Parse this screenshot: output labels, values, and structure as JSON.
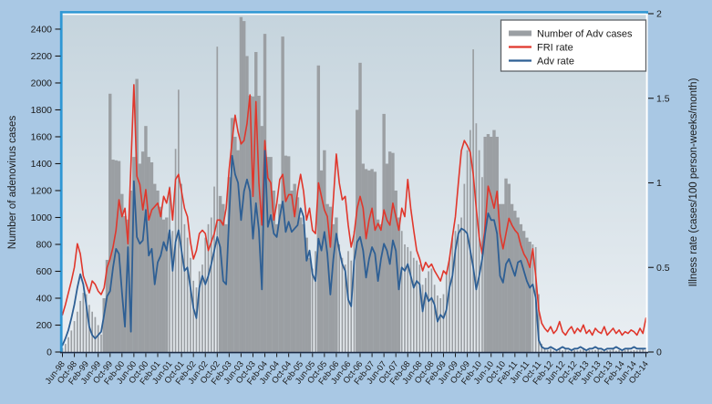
{
  "chart_data": {
    "type": "combo",
    "title": "",
    "x_start": "Jun-98",
    "x_end": "Oct-14",
    "n_points": 197,
    "x_tick_every_months": 4,
    "x_tick_labels": [
      "Jun-98",
      "Oct-98",
      "Feb-99",
      "Jun-99",
      "Oct-99",
      "Feb-00",
      "Jun-00",
      "Oct-00",
      "Feb-01",
      "Jun-01",
      "Oct-01",
      "Feb-02",
      "Jun-02",
      "Oct-02",
      "Feb-03",
      "Jun-03",
      "Oct-03",
      "Feb-04",
      "Jun-04",
      "Oct-04",
      "Feb-05",
      "Jun-05",
      "Oct-05",
      "Feb-06",
      "Jun-06",
      "Oct-06",
      "Feb-07",
      "Jun-07",
      "Oct-07",
      "Feb-08",
      "Jun-08",
      "Oct-08",
      "Feb-09",
      "Jun-09",
      "Oct-09",
      "Feb-10",
      "Jun-10",
      "Oct-10",
      "Feb-11",
      "Jun-11",
      "Oct-11",
      "Feb-12",
      "Jun-12",
      "Oct-12",
      "Feb-13",
      "Jun-13",
      "Oct-13",
      "Feb-14",
      "Jun-14",
      "Oct-14"
    ],
    "left_axis": {
      "label": "Number of adenovirus cases",
      "tick_labels": [
        "0",
        "200",
        "400",
        "600",
        "800",
        "1000",
        "1200",
        "1400",
        "1600",
        "1800",
        "2000",
        "2200",
        "2400"
      ],
      "ticks": [
        0,
        200,
        400,
        600,
        800,
        1000,
        1200,
        1400,
        1600,
        1800,
        2000,
        2200,
        2400
      ],
      "range": [
        0,
        2515
      ]
    },
    "right_axis": {
      "label": "Illness rate (cases/100 person-weeks/month)",
      "tick_labels": [
        "0",
        "0.5",
        "1",
        "1.5",
        "2"
      ],
      "ticks": [
        0,
        0.5,
        1,
        1.5,
        2
      ],
      "range": [
        0,
        2
      ]
    },
    "legend": {
      "position": "top-right",
      "entries": [
        {
          "label": "Number of Adv cases",
          "swatch": "bar",
          "color": "#9b9fa3"
        },
        {
          "label": "FRI rate",
          "swatch": "line",
          "color": "#e0372c"
        },
        {
          "label": "Adv rate",
          "swatch": "line",
          "color": "#2e5f94"
        }
      ]
    },
    "series": [
      {
        "name": "Number of Adv cases",
        "type": "bar",
        "axis": "left",
        "color": "#9b9fa3",
        "values": [
          30,
          60,
          110,
          160,
          230,
          300,
          380,
          440,
          430,
          350,
          300,
          260,
          200,
          130,
          400,
          685,
          1920,
          1430,
          1425,
          1420,
          1175,
          1010,
          985,
          1200,
          1450,
          2030,
          1400,
          1490,
          1680,
          1450,
          1410,
          1250,
          1200,
          1080,
          985,
          1000,
          1230,
          900,
          1510,
          1950,
          1250,
          950,
          850,
          700,
          530,
          480,
          600,
          650,
          850,
          950,
          1000,
          1230,
          2270,
          1160,
          1100,
          950,
          1300,
          1740,
          1600,
          1500,
          2490,
          2460,
          2200,
          1905,
          1900,
          2230,
          1905,
          1680,
          2365,
          1450,
          1450,
          1200,
          950,
          1100,
          2345,
          1460,
          1455,
          1200,
          1250,
          1150,
          1000,
          950,
          850,
          700,
          620,
          750,
          2130,
          1350,
          1500,
          1100,
          1080,
          950,
          1000,
          800,
          700,
          650,
          750,
          680,
          900,
          1800,
          2150,
          1400,
          1360,
          1350,
          1360,
          1340,
          985,
          950,
          1770,
          1400,
          1490,
          1480,
          1200,
          1000,
          900,
          800,
          780,
          750,
          700,
          680,
          650,
          500,
          550,
          600,
          620,
          500,
          420,
          400,
          430,
          600,
          700,
          850,
          900,
          950,
          1000,
          1250,
          1500,
          1650,
          2250,
          1700,
          1500,
          1300,
          1600,
          1620,
          1600,
          1650,
          1600,
          1100,
          1100,
          1290,
          1250,
          1100,
          1050,
          1000,
          950,
          900,
          850,
          820,
          800,
          780,
          430,
          60,
          20,
          15,
          25,
          10,
          15,
          20,
          12,
          18,
          10,
          22,
          15,
          12,
          18,
          20,
          10,
          15,
          12,
          16,
          20,
          10,
          15,
          12,
          14,
          20,
          10,
          15,
          12,
          15,
          20,
          10,
          14,
          12,
          16,
          25,
          15
        ]
      },
      {
        "name": "FRI rate",
        "type": "line",
        "axis": "right",
        "color": "#e0372c",
        "values": [
          0.22,
          0.28,
          0.35,
          0.42,
          0.5,
          0.64,
          0.58,
          0.45,
          0.4,
          0.35,
          0.42,
          0.4,
          0.36,
          0.34,
          0.38,
          0.5,
          0.55,
          0.62,
          0.72,
          0.9,
          0.8,
          0.85,
          0.64,
          1.1,
          1.58,
          1.04,
          0.99,
          0.84,
          0.96,
          0.78,
          0.84,
          0.86,
          0.88,
          0.8,
          0.92,
          0.88,
          0.97,
          0.78,
          1.02,
          1.05,
          0.95,
          0.85,
          0.8,
          0.65,
          0.55,
          0.6,
          0.7,
          0.72,
          0.7,
          0.6,
          0.65,
          0.7,
          0.78,
          0.78,
          0.75,
          0.85,
          1.08,
          1.25,
          1.4,
          1.3,
          1.23,
          1.25,
          1.35,
          1.52,
          0.92,
          1.48,
          1.0,
          0.75,
          1.25,
          1.03,
          1.0,
          0.78,
          0.88,
          1.02,
          1.05,
          0.89,
          0.93,
          0.93,
          0.8,
          0.95,
          1.05,
          0.95,
          0.78,
          0.85,
          0.72,
          0.7,
          1.0,
          0.92,
          0.84,
          0.8,
          0.62,
          0.9,
          1.17,
          1.0,
          0.9,
          0.92,
          0.75,
          0.62,
          0.7,
          0.85,
          0.92,
          0.85,
          0.67,
          0.78,
          0.85,
          0.72,
          0.76,
          0.72,
          0.84,
          0.78,
          0.75,
          0.88,
          0.8,
          0.72,
          0.85,
          0.8,
          1.02,
          0.85,
          0.72,
          0.6,
          0.55,
          0.48,
          0.53,
          0.5,
          0.52,
          0.48,
          0.45,
          0.42,
          0.48,
          0.46,
          0.55,
          0.68,
          0.8,
          1.0,
          1.19,
          1.25,
          1.22,
          1.18,
          1.05,
          0.85,
          0.68,
          0.58,
          0.75,
          0.98,
          0.92,
          0.85,
          0.95,
          0.7,
          0.61,
          0.7,
          0.79,
          0.75,
          0.72,
          0.7,
          0.63,
          0.58,
          0.55,
          0.5,
          0.61,
          0.45,
          0.25,
          0.17,
          0.14,
          0.12,
          0.15,
          0.11,
          0.13,
          0.18,
          0.12,
          0.1,
          0.13,
          0.15,
          0.11,
          0.14,
          0.12,
          0.16,
          0.11,
          0.13,
          0.1,
          0.14,
          0.12,
          0.11,
          0.15,
          0.1,
          0.12,
          0.14,
          0.11,
          0.13,
          0.1,
          0.12,
          0.11,
          0.13,
          0.12,
          0.1,
          0.14,
          0.11,
          0.2
        ]
      },
      {
        "name": "Adv rate",
        "type": "line",
        "axis": "right",
        "color": "#2e5f94",
        "values": [
          0.04,
          0.08,
          0.13,
          0.2,
          0.28,
          0.38,
          0.46,
          0.4,
          0.28,
          0.15,
          0.1,
          0.08,
          0.1,
          0.12,
          0.22,
          0.33,
          0.36,
          0.5,
          0.61,
          0.58,
          0.35,
          0.15,
          0.62,
          0.12,
          1.01,
          0.68,
          0.64,
          0.66,
          0.84,
          0.57,
          0.61,
          0.4,
          0.53,
          0.57,
          0.65,
          0.6,
          0.72,
          0.48,
          0.65,
          0.72,
          0.6,
          0.48,
          0.5,
          0.38,
          0.26,
          0.2,
          0.38,
          0.45,
          0.4,
          0.45,
          0.52,
          0.6,
          0.68,
          0.62,
          0.42,
          0.4,
          0.8,
          1.16,
          1.05,
          1.0,
          0.78,
          0.95,
          1.02,
          0.95,
          0.67,
          0.88,
          0.72,
          0.37,
          1.19,
          0.74,
          0.81,
          0.7,
          0.68,
          0.8,
          0.89,
          0.71,
          0.77,
          0.71,
          0.73,
          0.75,
          0.85,
          0.8,
          0.54,
          0.6,
          0.46,
          0.42,
          0.67,
          0.6,
          0.71,
          0.58,
          0.34,
          0.55,
          0.7,
          0.6,
          0.52,
          0.48,
          0.31,
          0.27,
          0.54,
          0.65,
          0.68,
          0.6,
          0.44,
          0.55,
          0.62,
          0.58,
          0.42,
          0.55,
          0.64,
          0.6,
          0.52,
          0.66,
          0.6,
          0.37,
          0.5,
          0.48,
          0.52,
          0.45,
          0.38,
          0.42,
          0.4,
          0.24,
          0.35,
          0.3,
          0.32,
          0.28,
          0.18,
          0.22,
          0.2,
          0.25,
          0.38,
          0.45,
          0.6,
          0.7,
          0.73,
          0.72,
          0.7,
          0.6,
          0.5,
          0.37,
          0.45,
          0.55,
          0.7,
          0.82,
          0.78,
          0.78,
          0.7,
          0.45,
          0.41,
          0.52,
          0.55,
          0.5,
          0.45,
          0.53,
          0.54,
          0.48,
          0.42,
          0.38,
          0.4,
          0.32,
          0.07,
          0.03,
          0.02,
          0.02,
          0.03,
          0.02,
          0.01,
          0.02,
          0.03,
          0.02,
          0.02,
          0.01,
          0.02,
          0.02,
          0.03,
          0.02,
          0.01,
          0.02,
          0.02,
          0.03,
          0.02,
          0.02,
          0.01,
          0.02,
          0.02,
          0.02,
          0.03,
          0.02,
          0.01,
          0.02,
          0.02,
          0.02,
          0.03,
          0.02,
          0.02,
          0.02,
          0.02
        ]
      }
    ],
    "style": {
      "page_background": "#a9c8e4",
      "plot_gradient_top": "#c5d4dd",
      "plot_gradient_bottom": "#eaeff3",
      "frame_blue": "#2f97d4",
      "frame_white": "#ffffff",
      "frame_bottom_dark": "#1c2b45",
      "bar_color": "#9b9fa3",
      "fri_color": "#e0372c",
      "adv_color": "#2e5f94",
      "text_color": "#1a1a1a",
      "legend_background": "#ffffff",
      "legend_border": "#5f6368"
    },
    "grid": false
  }
}
